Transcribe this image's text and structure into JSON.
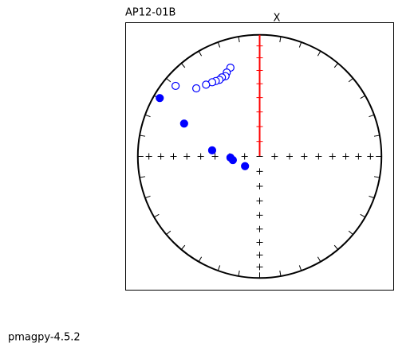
{
  "chart_data": {
    "type": "eqarea",
    "title": "AP12-01B",
    "north_label": "X",
    "footer": "pmagpy-4.5.2",
    "xlim": [
      -1.1,
      1.1
    ],
    "ylim": [
      -1.1,
      1.1
    ],
    "series": [
      {
        "color": "#0000ff",
        "filled": true,
        "x": [
          -0.82,
          -0.62,
          -0.39,
          -0.24,
          -0.22,
          -0.12
        ],
        "values": [
          0.48,
          0.27,
          0.05,
          -0.01,
          -0.03,
          -0.08
        ]
      },
      {
        "color": "#0000ff",
        "filled": false,
        "x": [
          -0.24,
          -0.27,
          -0.28,
          -0.31,
          -0.33,
          -0.36,
          -0.39,
          -0.44,
          -0.52,
          -0.69
        ],
        "values": [
          0.73,
          0.69,
          0.66,
          0.65,
          0.63,
          0.62,
          0.61,
          0.59,
          0.56,
          0.58
        ]
      }
    ]
  }
}
